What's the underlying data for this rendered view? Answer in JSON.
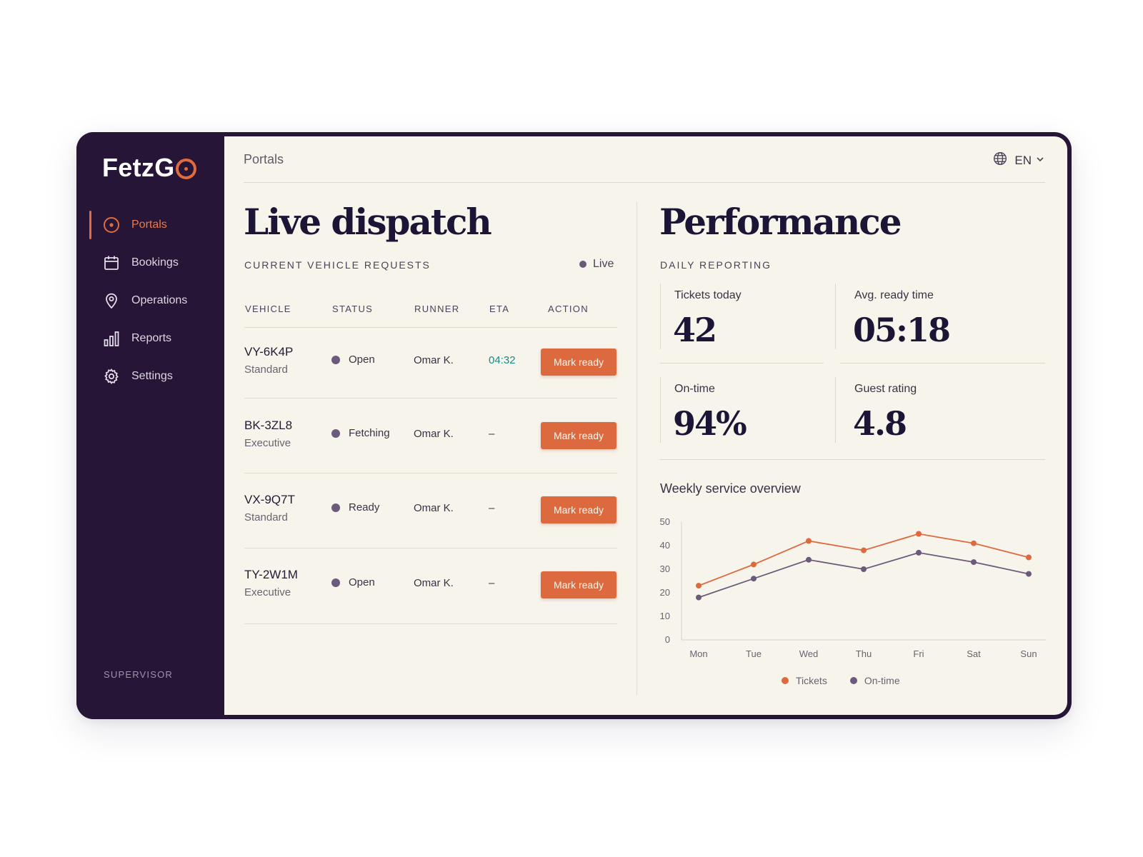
{
  "brand": {
    "name": "FetzG"
  },
  "sidebar": {
    "items": [
      {
        "label": "Portals",
        "icon": "target-icon",
        "active": true
      },
      {
        "label": "Bookings",
        "icon": "calendar-icon",
        "active": false
      },
      {
        "label": "Operations",
        "icon": "map-pin-icon",
        "active": false
      },
      {
        "label": "Reports",
        "icon": "bar-chart-icon",
        "active": false
      },
      {
        "label": "Settings",
        "icon": "gear-icon",
        "active": false
      }
    ],
    "role": "SUPERVISOR"
  },
  "header": {
    "breadcrumb": "Portals",
    "language": "EN"
  },
  "dispatch": {
    "title": "Live dispatch",
    "subtitle": "CURRENT VEHICLE REQUESTS",
    "live_label": "Live",
    "columns": [
      "VEHICLE",
      "STATUS",
      "RUNNER",
      "ETA",
      "ACTION"
    ],
    "rows": [
      {
        "vehicle": "VY-6K4P",
        "class": "Standard",
        "status": "Open",
        "runner": "Omar K.",
        "eta": "04:32",
        "action": "Mark ready"
      },
      {
        "vehicle": "BK-3ZL8",
        "class": "Executive",
        "status": "Fetching",
        "runner": "Omar K.",
        "eta": "–",
        "action": "Mark ready"
      },
      {
        "vehicle": "VX-9Q7T",
        "class": "Standard",
        "status": "Ready",
        "runner": "Omar K.",
        "eta": "–",
        "action": "Mark ready"
      },
      {
        "vehicle": "TY-2W1M",
        "class": "Executive",
        "status": "Open",
        "runner": "Omar K.",
        "eta": "–",
        "action": "Mark ready"
      }
    ]
  },
  "performance": {
    "title": "Performance",
    "subtitle": "DAILY REPORTING",
    "kpis": [
      {
        "label": "Tickets today",
        "value": "42"
      },
      {
        "label": "Avg. ready time",
        "value": "05:18"
      },
      {
        "label": "On-time",
        "value": "94%"
      },
      {
        "label": "Guest rating",
        "value": "4.8"
      }
    ]
  },
  "colors": {
    "accent": "#dd6a3f",
    "sidebar": "#261536",
    "muted_series": "#6b5a7b",
    "eta_live": "#148c89"
  },
  "chart_data": {
    "type": "line",
    "title": "Weekly service overview",
    "categories": [
      "Mon",
      "Tue",
      "Wed",
      "Thu",
      "Fri",
      "Sat",
      "Sun"
    ],
    "series": [
      {
        "name": "Tickets",
        "color": "#dd6a3f",
        "values": [
          23,
          32,
          42,
          38,
          45,
          41,
          35
        ]
      },
      {
        "name": "On-time",
        "color": "#6b5a7b",
        "values": [
          18,
          26,
          34,
          30,
          37,
          33,
          28
        ]
      }
    ],
    "ylim": [
      0,
      50
    ],
    "yticks": [
      0,
      10,
      20,
      30,
      40,
      50
    ],
    "grid": false,
    "legend": "bottom"
  }
}
